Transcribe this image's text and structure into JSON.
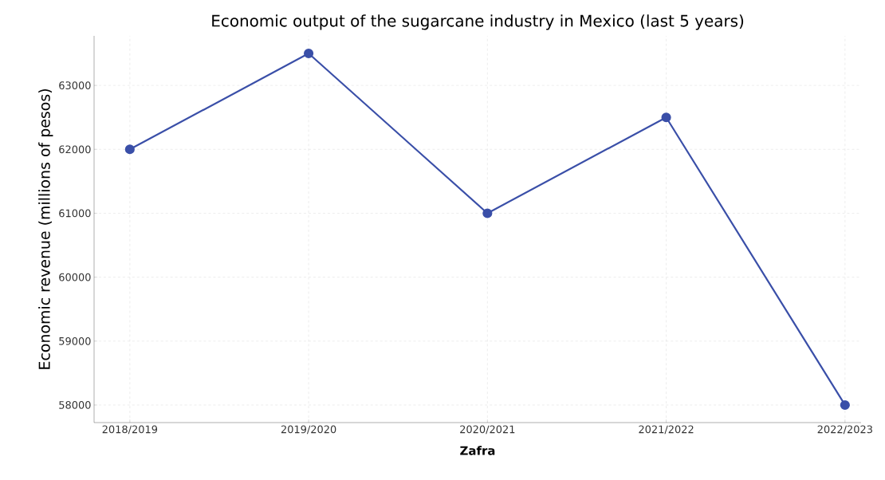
{
  "chart_data": {
    "type": "line",
    "title": "Economic output of the sugarcane industry in Mexico (last 5 years)",
    "xlabel": "**Zafra**",
    "ylabel": "Economic revenue (millions of pesos)",
    "categories": [
      "2018/2019",
      "2019/2020",
      "2020/2021",
      "2021/2022",
      "2022/2023"
    ],
    "values": [
      62000,
      63500,
      61000,
      62500,
      58000
    ],
    "color": "#3a4fa8",
    "ylim": [
      57725,
      63775
    ],
    "yticks": [
      58000,
      59000,
      60000,
      61000,
      62000,
      63000
    ],
    "grid": true,
    "marker": "circle",
    "line_style": "solid"
  }
}
